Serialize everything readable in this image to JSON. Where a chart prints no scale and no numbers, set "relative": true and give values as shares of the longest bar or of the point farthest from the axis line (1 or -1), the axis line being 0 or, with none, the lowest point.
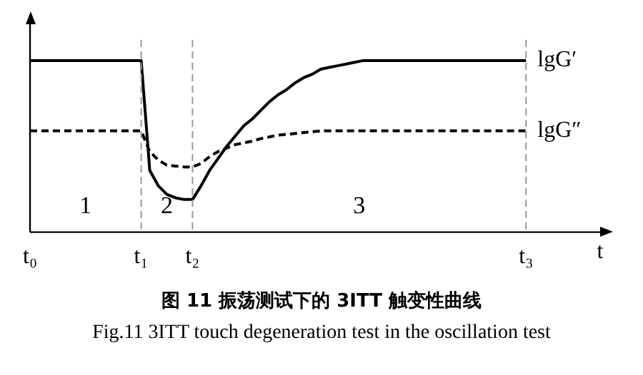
{
  "chart_data": {
    "type": "line",
    "title": "图 11 振荡测试下的 3ITT 触变性曲线",
    "subtitle": "Fig.11 3ITT touch degeneration test in the oscillation test",
    "xlabel": "t",
    "relative": true,
    "categories": [
      "t₀",
      null,
      null,
      null,
      null,
      null,
      null,
      null,
      null,
      null,
      null,
      null,
      null,
      "t₁",
      null,
      null,
      null,
      null,
      null,
      "t₂",
      null,
      null,
      null,
      null,
      null,
      null,
      null,
      null,
      null,
      null,
      null,
      null,
      null,
      null,
      null,
      null,
      null,
      null,
      null,
      null,
      null,
      null,
      null,
      null,
      null,
      null,
      null,
      null,
      null,
      null,
      null,
      null,
      null,
      null,
      null,
      null,
      null,
      null,
      "t₃",
      null,
      null,
      null,
      null,
      null,
      null,
      null,
      null,
      null
    ],
    "grid": false,
    "legend": false,
    "marker": "none",
    "series": [
      {
        "name": "lgG′",
        "color": "#000000",
        "line_style": "solid",
        "values": [
          1,
          1,
          1,
          1,
          1,
          1,
          1,
          1,
          1,
          1,
          1,
          1,
          1,
          1,
          0.36,
          0.27,
          0.22,
          0.2,
          0.19,
          0.19,
          0.27,
          0.36,
          0.43,
          0.5,
          0.56,
          0.62,
          0.66,
          0.71,
          0.76,
          0.8,
          0.83,
          0.87,
          0.9,
          0.92,
          0.95,
          0.96,
          0.97,
          0.98,
          0.99,
          1,
          1,
          1,
          1,
          1,
          1,
          1,
          1,
          1,
          1,
          1,
          1,
          1,
          1,
          1,
          1,
          1,
          1,
          1,
          1,
          null,
          null,
          null,
          null,
          null,
          null,
          null,
          null,
          null
        ]
      },
      {
        "name": "lgG″",
        "color": "#000000",
        "line_style": "dashed",
        "values": [
          0.59,
          0.59,
          0.59,
          0.59,
          0.59,
          0.59,
          0.59,
          0.59,
          0.59,
          0.59,
          0.59,
          0.59,
          0.59,
          0.59,
          0.47,
          0.42,
          0.39,
          0.385,
          0.38,
          0.38,
          0.4,
          0.44,
          0.47,
          0.49,
          0.51,
          0.52,
          0.53,
          0.545,
          0.555,
          0.565,
          0.57,
          0.575,
          0.58,
          0.585,
          0.59,
          0.59,
          0.59,
          0.59,
          0.59,
          0.59,
          0.59,
          0.59,
          0.59,
          0.59,
          0.59,
          0.59,
          0.59,
          0.59,
          0.59,
          0.59,
          0.59,
          0.59,
          0.59,
          0.59,
          0.59,
          0.59,
          0.59,
          0.59,
          0.59,
          null,
          null,
          null,
          null,
          null,
          null,
          null,
          null,
          null
        ]
      }
    ],
    "ref_lines": [
      {
        "axis": "x",
        "value": "t₁",
        "color": "#999999",
        "line_style": "dashed"
      },
      {
        "axis": "x",
        "value": "t₂",
        "color": "#999999",
        "line_style": "dashed"
      },
      {
        "axis": "x",
        "value": "t₃",
        "color": "#999999",
        "line_style": "dashed"
      }
    ],
    "annotations": [
      "1",
      "2",
      "3"
    ]
  }
}
